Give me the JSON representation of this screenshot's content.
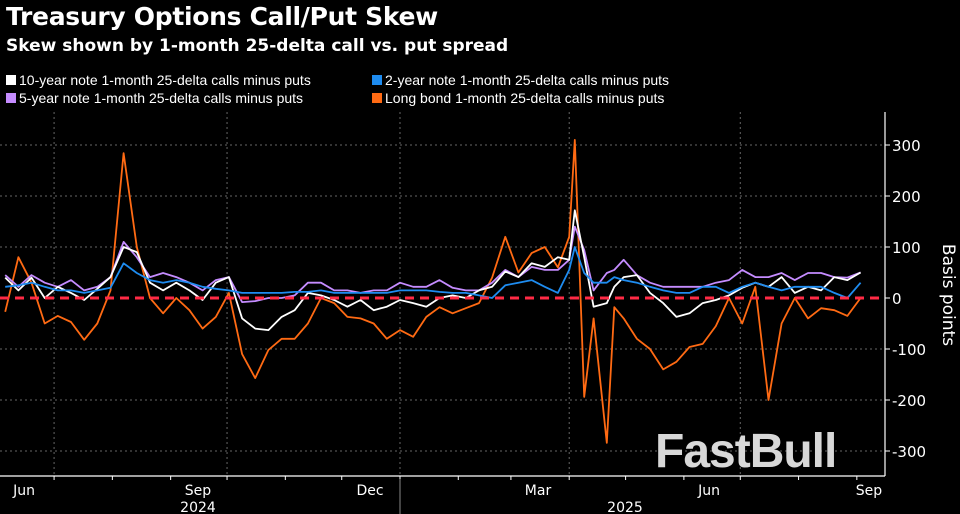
{
  "chart_data": {
    "type": "line",
    "title": "Treasury Options Call/Put Skew",
    "subtitle": "Skew shown by 1-month 25-delta call vs. put spread",
    "ylabel": "Basis points",
    "xlabel": "",
    "ylim": [
      -340,
      360
    ],
    "yticks": [
      300,
      200,
      100,
      0,
      -100,
      -200,
      -300
    ],
    "xtick_labels": [
      "Jun",
      "Sep",
      "Dec",
      "Mar",
      "Jun",
      "Sep"
    ],
    "xtick_dates": [
      "2024-06-15",
      "2024-09-15",
      "2024-12-15",
      "2025-03-15",
      "2025-06-15",
      "2025-09-05"
    ],
    "year_labels": [
      "2024",
      "2025"
    ],
    "grid": true,
    "legend_position": "top-left",
    "reference_line": {
      "value": 0,
      "color": "#ff2a45",
      "style": "dashed"
    },
    "x": [
      "2024-06-05",
      "2024-06-12",
      "2024-06-19",
      "2024-06-26",
      "2024-07-03",
      "2024-07-10",
      "2024-07-17",
      "2024-07-24",
      "2024-07-31",
      "2024-08-07",
      "2024-08-14",
      "2024-08-21",
      "2024-08-28",
      "2024-09-04",
      "2024-09-11",
      "2024-09-18",
      "2024-09-25",
      "2024-10-02",
      "2024-10-09",
      "2024-10-16",
      "2024-10-23",
      "2024-10-30",
      "2024-11-06",
      "2024-11-13",
      "2024-11-20",
      "2024-11-27",
      "2024-12-04",
      "2024-12-11",
      "2024-12-18",
      "2024-12-25",
      "2025-01-01",
      "2025-01-08",
      "2025-01-15",
      "2025-01-22",
      "2025-01-29",
      "2025-02-05",
      "2025-02-12",
      "2025-02-19",
      "2025-02-26",
      "2025-03-05",
      "2025-03-12",
      "2025-03-19",
      "2025-03-26",
      "2025-04-01",
      "2025-04-04",
      "2025-04-09",
      "2025-04-14",
      "2025-04-21",
      "2025-04-25",
      "2025-04-30",
      "2025-05-07",
      "2025-05-14",
      "2025-05-21",
      "2025-05-28",
      "2025-06-04",
      "2025-06-11",
      "2025-06-18",
      "2025-06-25",
      "2025-07-02",
      "2025-07-09",
      "2025-07-16",
      "2025-07-23",
      "2025-07-30",
      "2025-08-06",
      "2025-08-13",
      "2025-08-20",
      "2025-08-27",
      "2025-09-03"
    ],
    "series": [
      {
        "name": "Long bond 1-month 25-delta calls minus puts",
        "color": "#ff6a13",
        "values": [
          -27,
          80,
          30,
          -50,
          -35,
          -47,
          -82,
          -50,
          15,
          284,
          100,
          0,
          -30,
          0,
          -24,
          -60,
          -37,
          10,
          -110,
          -157,
          -102,
          -80,
          -80,
          -50,
          0,
          -10,
          -37,
          -40,
          -50,
          -80,
          -63,
          -76,
          -37,
          -18,
          -30,
          -20,
          -10,
          40,
          120,
          50,
          88,
          100,
          60,
          120,
          310,
          -194,
          -40,
          -284,
          -18,
          -40,
          -80,
          -100,
          -140,
          -125,
          -96,
          -90,
          -55,
          0,
          -50,
          22,
          -200,
          -50,
          0,
          -40,
          -20,
          -24,
          -35,
          0
        ]
      },
      {
        "name": "5-year note 1-month 25-delta calls minus puts",
        "color": "#c58cff",
        "values": [
          45,
          22,
          45,
          30,
          22,
          35,
          15,
          22,
          41,
          110,
          80,
          41,
          49,
          41,
          30,
          15,
          35,
          41,
          -8,
          -6,
          0,
          0,
          5,
          30,
          30,
          15,
          15,
          10,
          15,
          15,
          30,
          22,
          22,
          35,
          20,
          15,
          15,
          30,
          55,
          41,
          61,
          55,
          55,
          75,
          140,
          94,
          15,
          49,
          55,
          75,
          45,
          30,
          22,
          22,
          22,
          22,
          30,
          35,
          55,
          41,
          41,
          49,
          35,
          49,
          49,
          41,
          40,
          50
        ]
      },
      {
        "name": "10-year note 1-month 25-delta calls minus puts",
        "color": "#ffffff",
        "values": [
          40,
          15,
          40,
          0,
          22,
          10,
          -4,
          18,
          41,
          100,
          90,
          30,
          15,
          30,
          15,
          -4,
          30,
          41,
          -40,
          -60,
          -63,
          -37,
          -24,
          10,
          5,
          -4,
          -17,
          -4,
          -24,
          -17,
          -4,
          -10,
          -17,
          0,
          5,
          0,
          15,
          22,
          52,
          41,
          68,
          61,
          80,
          75,
          172,
          80,
          -17,
          -10,
          22,
          41,
          45,
          10,
          -10,
          -37,
          -30,
          -10,
          -4,
          5,
          20,
          30,
          22,
          41,
          10,
          22,
          15,
          41,
          35,
          50
        ]
      },
      {
        "name": "2-year note 1-month 25-delta calls minus puts",
        "color": "#1e8cf0",
        "values": [
          22,
          25,
          30,
          22,
          15,
          15,
          10,
          15,
          20,
          68,
          49,
          35,
          30,
          35,
          30,
          22,
          18,
          15,
          10,
          10,
          10,
          10,
          12,
          12,
          15,
          10,
          10,
          10,
          10,
          10,
          15,
          15,
          15,
          12,
          10,
          10,
          5,
          0,
          25,
          30,
          35,
          22,
          10,
          55,
          100,
          49,
          30,
          30,
          41,
          35,
          30,
          22,
          15,
          10,
          10,
          22,
          22,
          10,
          22,
          30,
          22,
          15,
          22,
          22,
          22,
          10,
          0,
          30
        ]
      }
    ]
  },
  "legend": [
    {
      "label": "10-year note 1-month 25-delta calls minus puts",
      "color": "#ffffff"
    },
    {
      "label": "2-year note 1-month 25-delta calls minus puts",
      "color": "#1e8cf0"
    },
    {
      "label": "5-year note 1-month 25-delta calls minus puts",
      "color": "#c58cff"
    },
    {
      "label": "Long bond 1-month 25-delta calls minus puts",
      "color": "#ff6a13"
    }
  ],
  "watermark": "FastBull"
}
